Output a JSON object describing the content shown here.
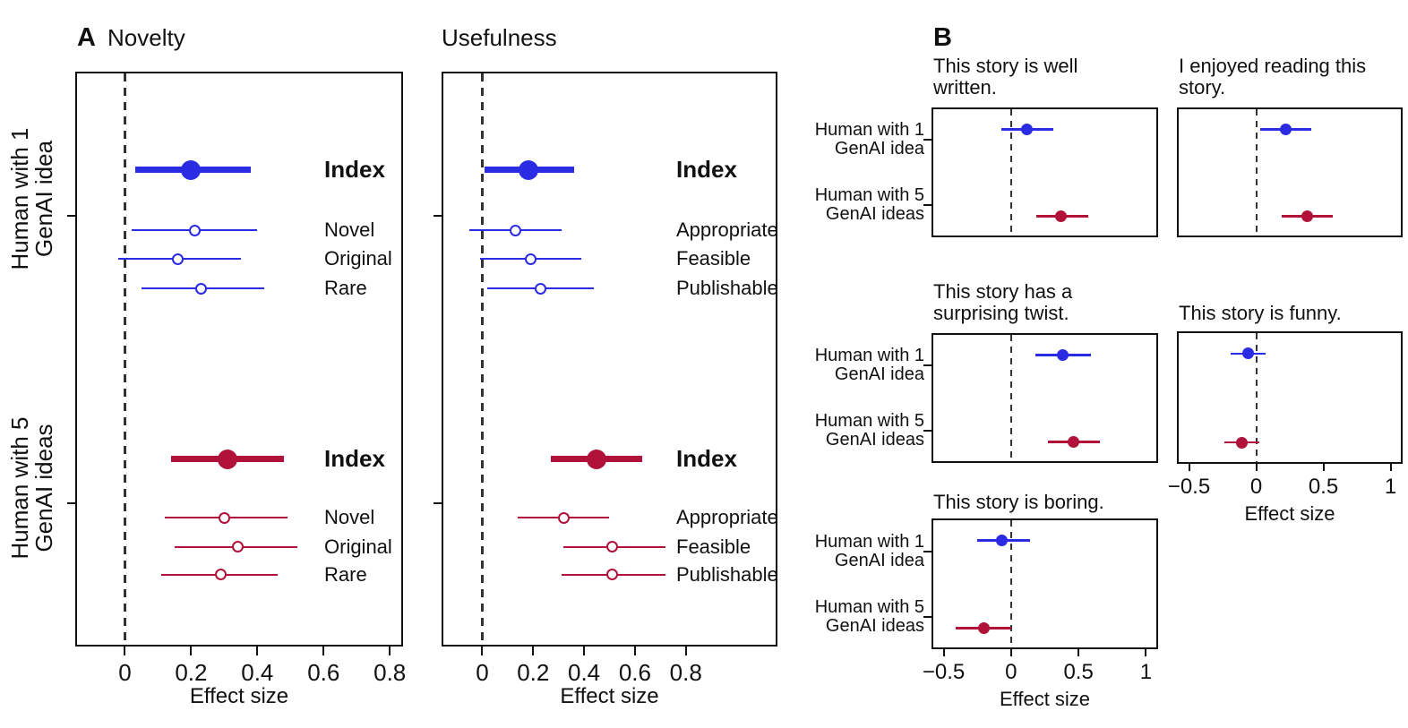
{
  "figure": {
    "panel_a_label": "A",
    "panel_b_label": "B",
    "colors": {
      "group1_blue": "#2B2BE3",
      "group2_red": "#B0123A",
      "axis_black": "#111111",
      "dashed_gray": "#333333"
    },
    "group_names": [
      "Human with 1 GenAI idea",
      "Human with 5 GenAI ideas"
    ]
  },
  "chart_data": [
    {
      "id": "novelty",
      "panel": "A",
      "type": "forest",
      "title": "Novelty",
      "xlabel": "Effect size",
      "xlim": [
        -0.15,
        0.84
      ],
      "xticks": [
        0,
        0.2,
        0.4,
        0.6,
        0.8
      ],
      "xtick_labels": [
        "0",
        "0.2",
        "0.4",
        "0.6",
        "0.8"
      ],
      "zero_line": 0,
      "grid": false,
      "groups": [
        {
          "name": "Human with 1 GenAI idea",
          "name_lines": [
            "Human with 1",
            "GenAI idea"
          ],
          "color": "group1_blue",
          "rows": [
            {
              "label": "Index",
              "bold": true,
              "big": true,
              "est": 0.2,
              "lo": 0.03,
              "hi": 0.38
            },
            {
              "label": "Novel",
              "est": 0.21,
              "lo": 0.02,
              "hi": 0.4
            },
            {
              "label": "Original",
              "est": 0.16,
              "lo": -0.02,
              "hi": 0.35
            },
            {
              "label": "Rare",
              "est": 0.23,
              "lo": 0.05,
              "hi": 0.42
            }
          ]
        },
        {
          "name": "Human with 5 GenAI ideas",
          "name_lines": [
            "Human with 5",
            "GenAI ideas"
          ],
          "color": "group2_red",
          "rows": [
            {
              "label": "Index",
              "bold": true,
              "big": true,
              "est": 0.31,
              "lo": 0.14,
              "hi": 0.48
            },
            {
              "label": "Novel",
              "est": 0.3,
              "lo": 0.12,
              "hi": 0.49
            },
            {
              "label": "Original",
              "est": 0.34,
              "lo": 0.15,
              "hi": 0.52
            },
            {
              "label": "Rare",
              "est": 0.29,
              "lo": 0.11,
              "hi": 0.46
            }
          ]
        }
      ]
    },
    {
      "id": "usefulness",
      "panel": "A",
      "type": "forest",
      "title": "Usefulness",
      "xlabel": "Effect size",
      "xlim": [
        -0.16,
        1.16
      ],
      "xticks": [
        0,
        0.2,
        0.4,
        0.6,
        0.8
      ],
      "xtick_labels": [
        "0",
        "0.2",
        "0.4",
        "0.6",
        "0.8"
      ],
      "zero_line": 0,
      "grid": false,
      "groups": [
        {
          "name": "Human with 1 GenAI idea",
          "name_lines": [
            "Human with 1",
            "GenAI idea"
          ],
          "color": "group1_blue",
          "rows": [
            {
              "label": "Index",
              "bold": true,
              "big": true,
              "est": 0.18,
              "lo": 0.01,
              "hi": 0.36
            },
            {
              "label": "Appropriate",
              "est": 0.13,
              "lo": -0.05,
              "hi": 0.31
            },
            {
              "label": "Feasible",
              "est": 0.19,
              "lo": -0.01,
              "hi": 0.39
            },
            {
              "label": "Publishable",
              "est": 0.23,
              "lo": 0.02,
              "hi": 0.44
            }
          ]
        },
        {
          "name": "Human with 5 GenAI ideas",
          "name_lines": [
            "Human with 5",
            "GenAI ideas"
          ],
          "color": "group2_red",
          "rows": [
            {
              "label": "Index",
              "bold": true,
              "big": true,
              "est": 0.45,
              "lo": 0.27,
              "hi": 0.63
            },
            {
              "label": "Appropriate",
              "est": 0.32,
              "lo": 0.14,
              "hi": 0.5
            },
            {
              "label": "Feasible",
              "est": 0.51,
              "lo": 0.32,
              "hi": 0.72
            },
            {
              "label": "Publishable",
              "est": 0.51,
              "lo": 0.31,
              "hi": 0.72
            }
          ]
        }
      ]
    },
    {
      "id": "well_written",
      "panel": "B",
      "type": "dot",
      "title": "This story is well written.",
      "title_lines": [
        "This story is well",
        "written."
      ],
      "xlim": [
        -0.59,
        1.09
      ],
      "xticks": [
        -0.5,
        0,
        0.5,
        1
      ],
      "xtick_labels": [
        "−0.5",
        "0",
        "0.5",
        "1"
      ],
      "xlabel": "Effect size",
      "show_x_axis": false,
      "show_row_labels": true,
      "rows": [
        {
          "group": "Human with 1 GenAI idea",
          "label_lines": [
            "Human with 1",
            "GenAI idea"
          ],
          "color": "group1_blue",
          "est": 0.12,
          "lo": -0.07,
          "hi": 0.31
        },
        {
          "group": "Human with 5 GenAI ideas",
          "label_lines": [
            "Human with 5",
            "GenAI ideas"
          ],
          "color": "group2_red",
          "est": 0.37,
          "lo": 0.19,
          "hi": 0.57
        }
      ]
    },
    {
      "id": "enjoyed",
      "panel": "B",
      "type": "dot",
      "title": "I enjoyed reading this story.",
      "title_lines": [
        "I enjoyed reading this",
        "story."
      ],
      "xlim": [
        -0.59,
        1.09
      ],
      "xticks": [
        -0.5,
        0,
        0.5,
        1
      ],
      "xtick_labels": [
        "−0.5",
        "0",
        "0.5",
        "1"
      ],
      "xlabel": "Effect size",
      "show_x_axis": false,
      "show_row_labels": false,
      "rows": [
        {
          "group": "Human with 1 GenAI idea",
          "label_lines": [
            "Human with 1",
            "GenAI idea"
          ],
          "color": "group1_blue",
          "est": 0.22,
          "lo": 0.03,
          "hi": 0.41
        },
        {
          "group": "Human with 5 GenAI ideas",
          "label_lines": [
            "Human with 5",
            "GenAI ideas"
          ],
          "color": "group2_red",
          "est": 0.38,
          "lo": 0.19,
          "hi": 0.57
        }
      ]
    },
    {
      "id": "twist",
      "panel": "B",
      "type": "dot",
      "title": "This story has a surprising twist.",
      "title_lines": [
        "This story has a",
        "surprising twist."
      ],
      "xlim": [
        -0.59,
        1.09
      ],
      "xticks": [
        -0.5,
        0,
        0.5,
        1
      ],
      "xtick_labels": [
        "−0.5",
        "0",
        "0.5",
        "1"
      ],
      "xlabel": "Effect size",
      "show_x_axis": false,
      "show_row_labels": true,
      "rows": [
        {
          "group": "Human with 1 GenAI idea",
          "label_lines": [
            "Human with 1",
            "GenAI idea"
          ],
          "color": "group1_blue",
          "est": 0.38,
          "lo": 0.18,
          "hi": 0.59
        },
        {
          "group": "Human with 5 GenAI ideas",
          "label_lines": [
            "Human with 5",
            "GenAI ideas"
          ],
          "color": "group2_red",
          "est": 0.46,
          "lo": 0.27,
          "hi": 0.66
        }
      ]
    },
    {
      "id": "funny",
      "panel": "B",
      "type": "dot",
      "title": "This story is funny.",
      "title_lines": [
        "This story is funny."
      ],
      "xlim": [
        -0.59,
        1.09
      ],
      "xticks": [
        -0.5,
        0,
        0.5,
        1
      ],
      "xtick_labels": [
        "−0.5",
        "0",
        "0.5",
        "1"
      ],
      "xlabel": "Effect size",
      "show_x_axis": true,
      "show_row_labels": false,
      "rows": [
        {
          "group": "Human with 1 GenAI idea",
          "label_lines": [
            "Human with 1",
            "GenAI idea"
          ],
          "color": "group1_blue",
          "est": -0.06,
          "lo": -0.19,
          "hi": 0.07
        },
        {
          "group": "Human with 5 GenAI ideas",
          "label_lines": [
            "Human with 5",
            "GenAI ideas"
          ],
          "color": "group2_red",
          "est": -0.11,
          "lo": -0.24,
          "hi": 0.02
        }
      ]
    },
    {
      "id": "boring",
      "panel": "B",
      "type": "dot",
      "title": "This story is boring.",
      "title_lines": [
        "This story is boring."
      ],
      "xlim": [
        -0.59,
        1.09
      ],
      "xticks": [
        -0.5,
        0,
        0.5,
        1
      ],
      "xtick_labels": [
        "−0.5",
        "0",
        "0.5",
        "1"
      ],
      "xlabel": "Effect size",
      "show_x_axis": true,
      "show_row_labels": true,
      "rows": [
        {
          "group": "Human with 1 GenAI idea",
          "label_lines": [
            "Human with 1",
            "GenAI idea"
          ],
          "color": "group1_blue",
          "est": -0.07,
          "lo": -0.25,
          "hi": 0.14
        },
        {
          "group": "Human with 5 GenAI ideas",
          "label_lines": [
            "Human with 5",
            "GenAI ideas"
          ],
          "color": "group2_red",
          "est": -0.2,
          "lo": -0.41,
          "hi": 0.0
        }
      ]
    }
  ]
}
